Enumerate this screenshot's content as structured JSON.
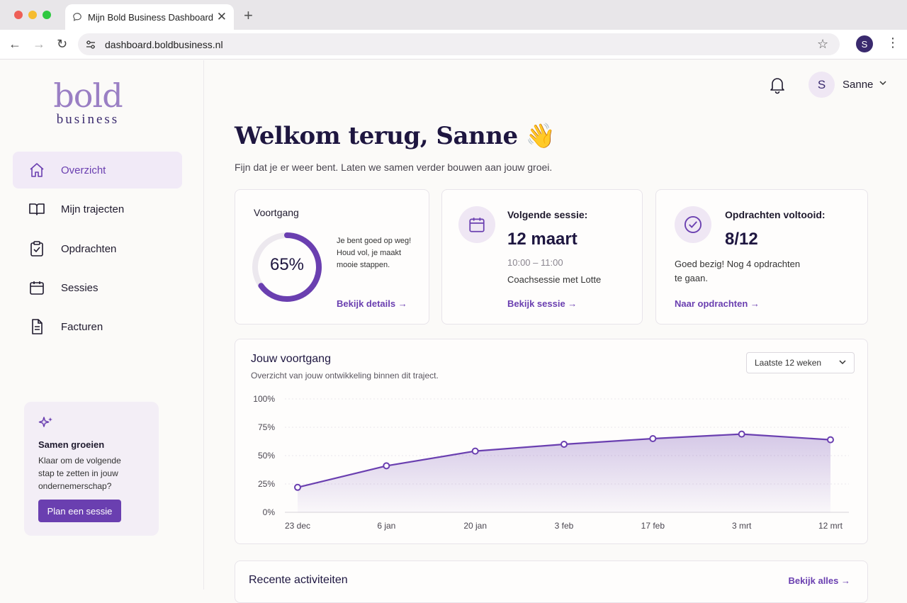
{
  "browser": {
    "tab_title": "Mijn Bold Business Dashboard",
    "tab_close": "✕",
    "new_tab": "+",
    "url": "dashboard.boldbusiness.nl",
    "profile_initial": "S"
  },
  "logo": {
    "line1": "bold",
    "line2": "business"
  },
  "sidebar": {
    "items": [
      {
        "label": "Overzicht",
        "icon": "home-icon",
        "active": true
      },
      {
        "label": "Mijn trajecten",
        "icon": "book-icon",
        "active": false
      },
      {
        "label": "Opdrachten",
        "icon": "clipboard-check-icon",
        "active": false
      },
      {
        "label": "Sessies",
        "icon": "calendar-icon",
        "active": false
      },
      {
        "label": "Facturen",
        "icon": "document-icon",
        "active": false
      }
    ],
    "promo": {
      "title": "Samen groeien",
      "text": "Klaar om de volgende stap te zetten in jouw ondernemerschap?",
      "button": "Plan een sessie"
    }
  },
  "header": {
    "user_initial": "S",
    "user_name": "Sanne"
  },
  "welcome": {
    "title": "Welkom terug, Sanne 👋",
    "subtitle": "Fijn dat je er weer bent. Laten we samen verder bouwen aan jouw groei."
  },
  "cards": {
    "progress": {
      "label": "Voortgang",
      "percent_text": "65%",
      "percent": 0.65,
      "text": "Je bent goed op weg! Houd vol, je maakt mooie stappen.",
      "link": "Bekijk details →"
    },
    "session": {
      "label": "Volgende sessie:",
      "date": "12 maart",
      "time": "10:00 – 11:00",
      "desc": "Coachsessie met Lotte",
      "link": "Bekijk sessie →"
    },
    "assignments": {
      "label": "Opdrachten voltooid:",
      "count": "8/12",
      "text": "Goed bezig! Nog 4 opdrachten te gaan.",
      "link": "Naar opdrachten →"
    }
  },
  "chart_section": {
    "title": "Jouw voortgang",
    "subtitle": "Overzicht van jouw ontwikkeling binnen dit traject.",
    "range_select": "Laatste 12 weken"
  },
  "chart_data": {
    "type": "area",
    "categories": [
      "23 dec",
      "6 jan",
      "20 jan",
      "3 feb",
      "17 feb",
      "3 mrt",
      "12 mrt"
    ],
    "values": [
      22,
      41,
      54,
      60,
      65,
      69,
      64
    ],
    "yticks": [
      "100%",
      "75%",
      "50%",
      "25%",
      "0%"
    ],
    "ylim": [
      0,
      100
    ],
    "color": "#6a3fb0",
    "grid": true
  },
  "recent": {
    "title": "Recente activiteiten",
    "link": "Bekijk alles →"
  }
}
